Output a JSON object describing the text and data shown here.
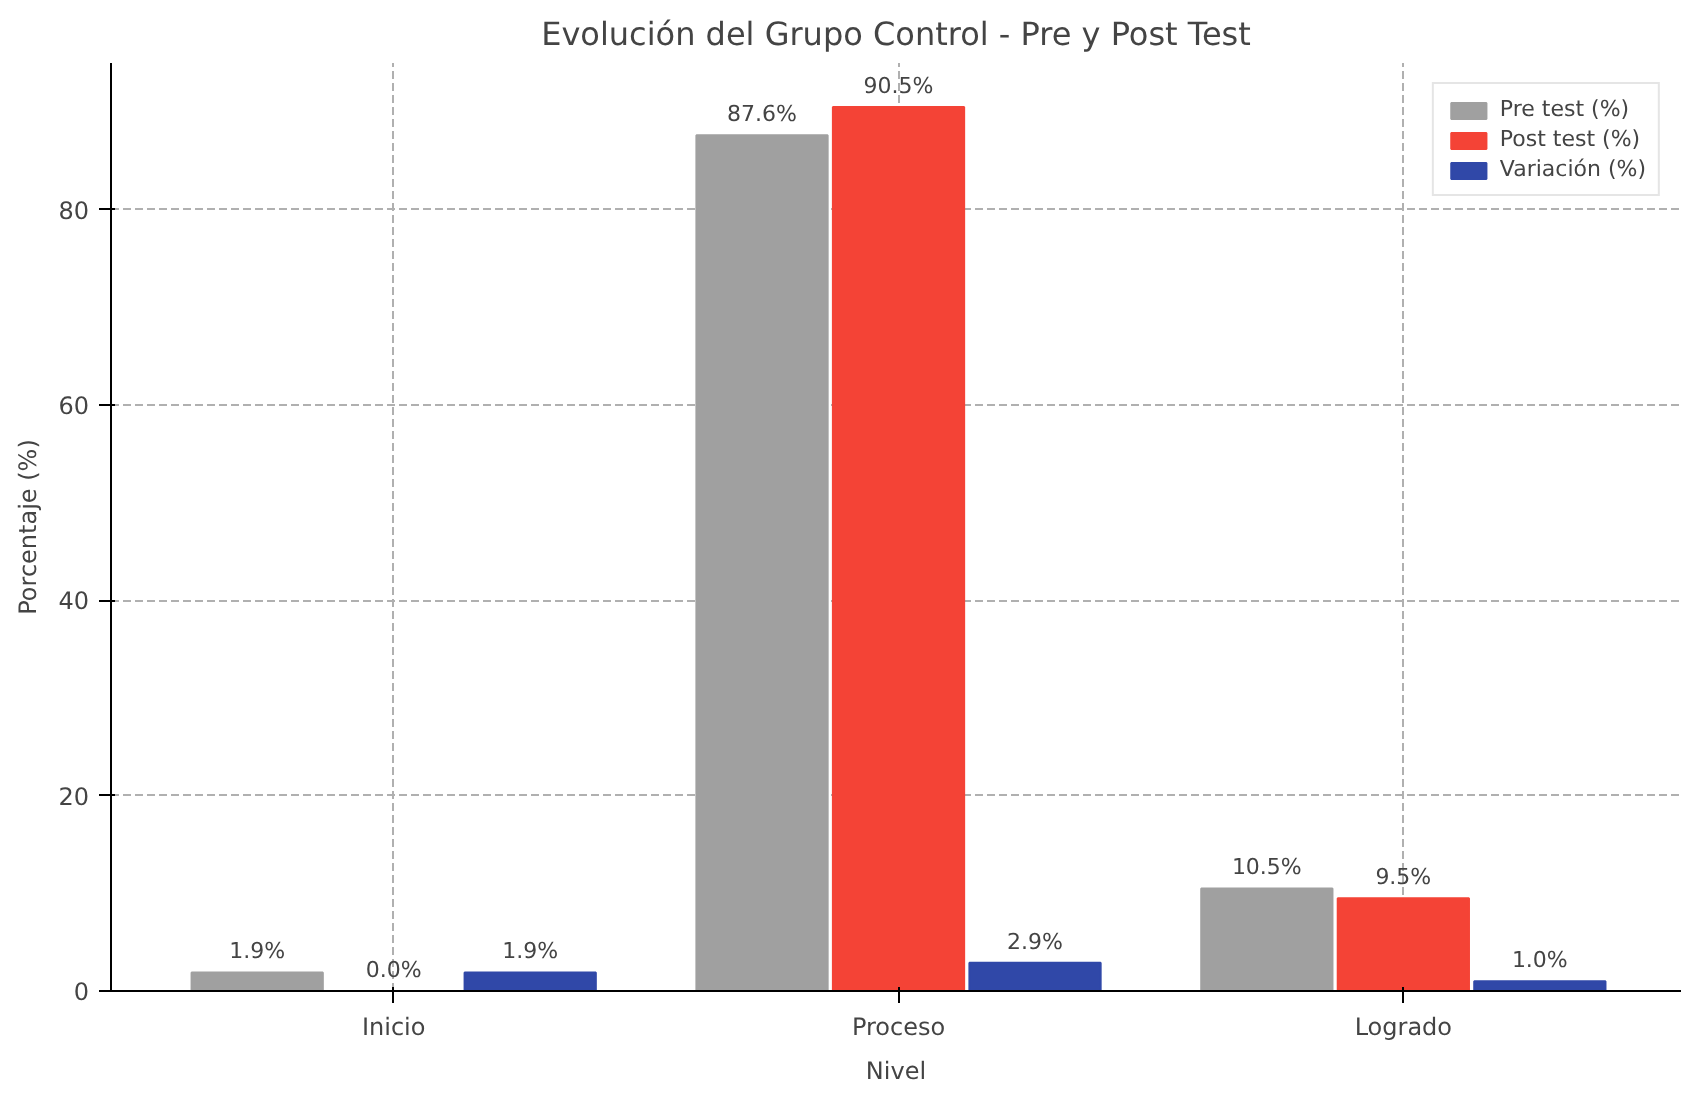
{
  "chart_data": {
    "type": "bar",
    "title": "Evolución del Grupo Control - Pre y Post Test",
    "xlabel": "Nivel",
    "ylabel": "Porcentaje (%)",
    "categories": [
      "Inicio",
      "Proceso",
      "Logrado"
    ],
    "series": [
      {
        "name": "Pre test (%)",
        "color": "#a0a0a0",
        "values": [
          1.9,
          87.6,
          10.5
        ],
        "value_labels": [
          "1.9%",
          "87.6%",
          "10.5%"
        ]
      },
      {
        "name": "Post test (%)",
        "color": "#f44336",
        "values": [
          0.0,
          90.5,
          9.5
        ],
        "value_labels": [
          "0.0%",
          "90.5%",
          "9.5%"
        ]
      },
      {
        "name": "Variación (%)",
        "color": "#3048a8",
        "values": [
          1.9,
          2.9,
          1.0
        ],
        "value_labels": [
          "1.9%",
          "2.9%",
          "1.0%"
        ]
      }
    ],
    "ylim": [
      0,
      95
    ],
    "yticks": [
      0,
      20,
      40,
      60,
      80
    ],
    "grid": true,
    "legend": "top right"
  }
}
